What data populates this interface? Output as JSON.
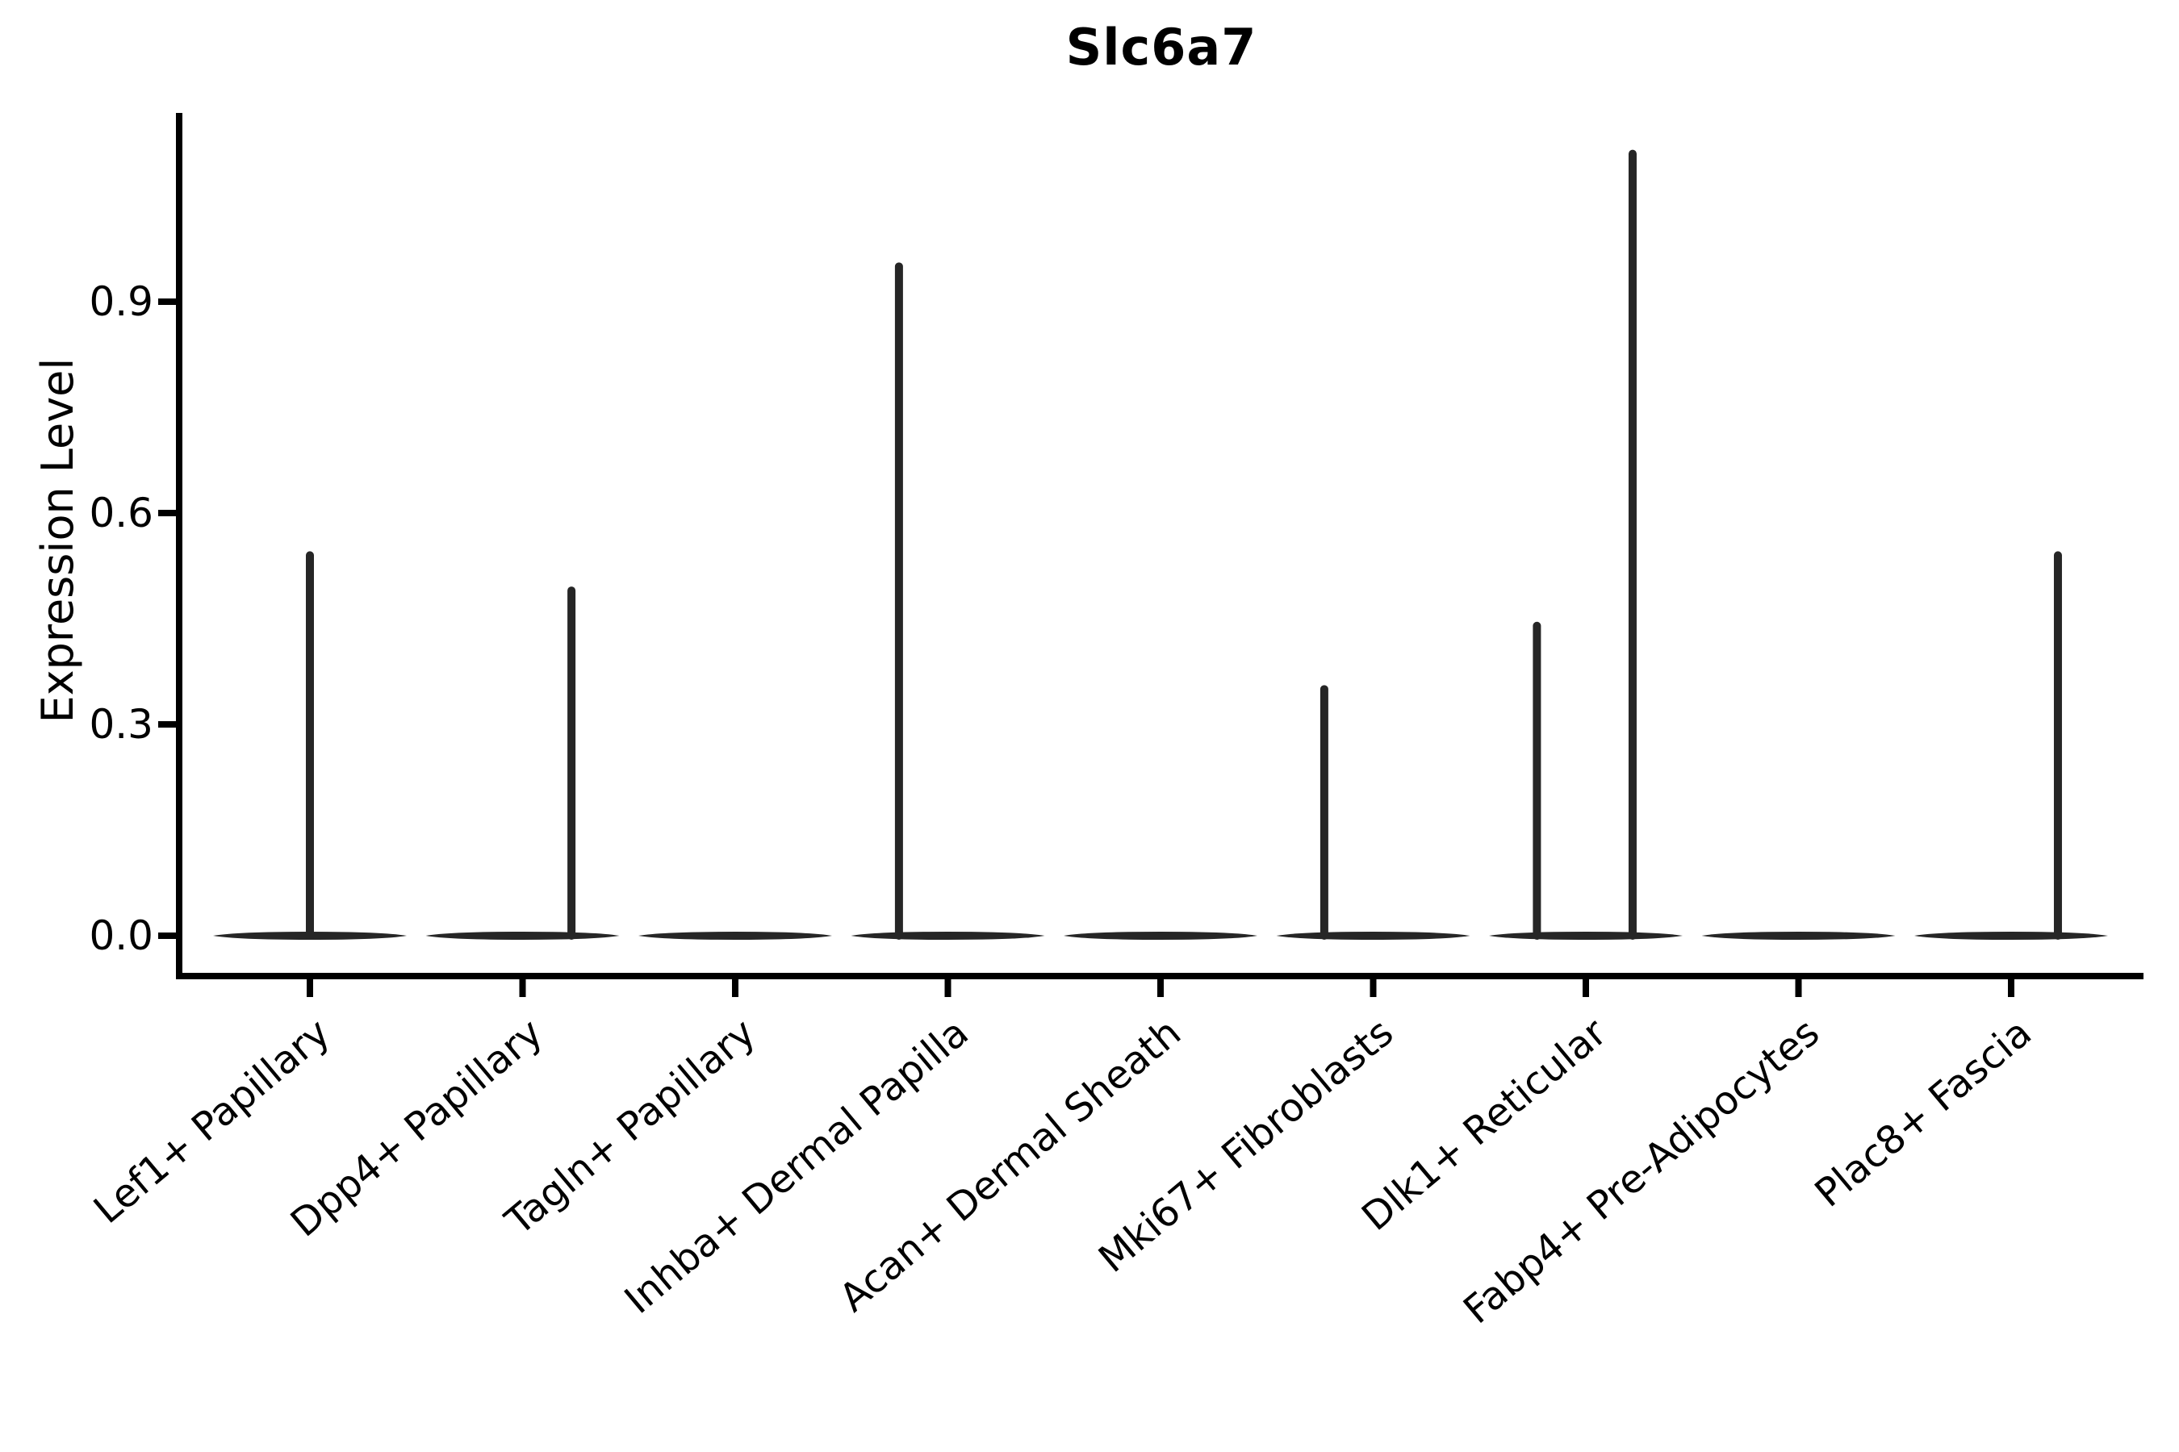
{
  "title": "Slc6a7",
  "axis": {
    "spine_color": "#000000",
    "violin_color": "#262626"
  },
  "chart_data": {
    "type": "violin",
    "title": "Slc6a7",
    "xlabel": "",
    "ylabel": "Expression Level",
    "categories": [
      "Lef1+ Papillary",
      "Dpp4+ Papillary",
      "Tagln+ Papillary",
      "Inhba+ Dermal Papilla",
      "Acan+ Dermal Sheath",
      "Mki67+ Fibroblasts",
      "Dlk1+ Reticular",
      "Fabp4+ Pre-Adipocytes",
      "Plac8+ Fascia"
    ],
    "yticks": [
      "0.0",
      "0.3",
      "0.6",
      "0.9"
    ],
    "ytick_values": [
      0.0,
      0.3,
      0.6,
      0.9
    ],
    "ylim": [
      -0.06,
      1.17
    ],
    "grid": false,
    "legend": null,
    "violin_width": 0.91,
    "series": [
      {
        "name": "Lef1+ Papillary",
        "base_value": 0.0,
        "spikes": [
          {
            "offset": 0.0,
            "max": 0.54
          }
        ]
      },
      {
        "name": "Dpp4+ Papillary",
        "base_value": 0.0,
        "spikes": [
          {
            "offset": 0.23,
            "max": 0.49
          }
        ]
      },
      {
        "name": "Tagln+ Papillary",
        "base_value": 0.0,
        "spikes": []
      },
      {
        "name": "Inhba+ Dermal Papilla",
        "base_value": 0.0,
        "spikes": [
          {
            "offset": -0.23,
            "max": 0.95
          }
        ]
      },
      {
        "name": "Acan+ Dermal Sheath",
        "base_value": 0.0,
        "spikes": []
      },
      {
        "name": "Mki67+ Fibroblasts",
        "base_value": 0.0,
        "spikes": [
          {
            "offset": -0.23,
            "max": 0.35
          }
        ]
      },
      {
        "name": "Dlk1+ Reticular",
        "base_value": 0.0,
        "spikes": [
          {
            "offset": -0.23,
            "max": 0.44
          },
          {
            "offset": 0.22,
            "max": 1.11
          }
        ]
      },
      {
        "name": "Fabp4+ Pre-Adipocytes",
        "base_value": 0.0,
        "spikes": []
      },
      {
        "name": "Plac8+ Fascia",
        "base_value": 0.0,
        "spikes": [
          {
            "offset": 0.22,
            "max": 0.54
          }
        ]
      }
    ]
  }
}
